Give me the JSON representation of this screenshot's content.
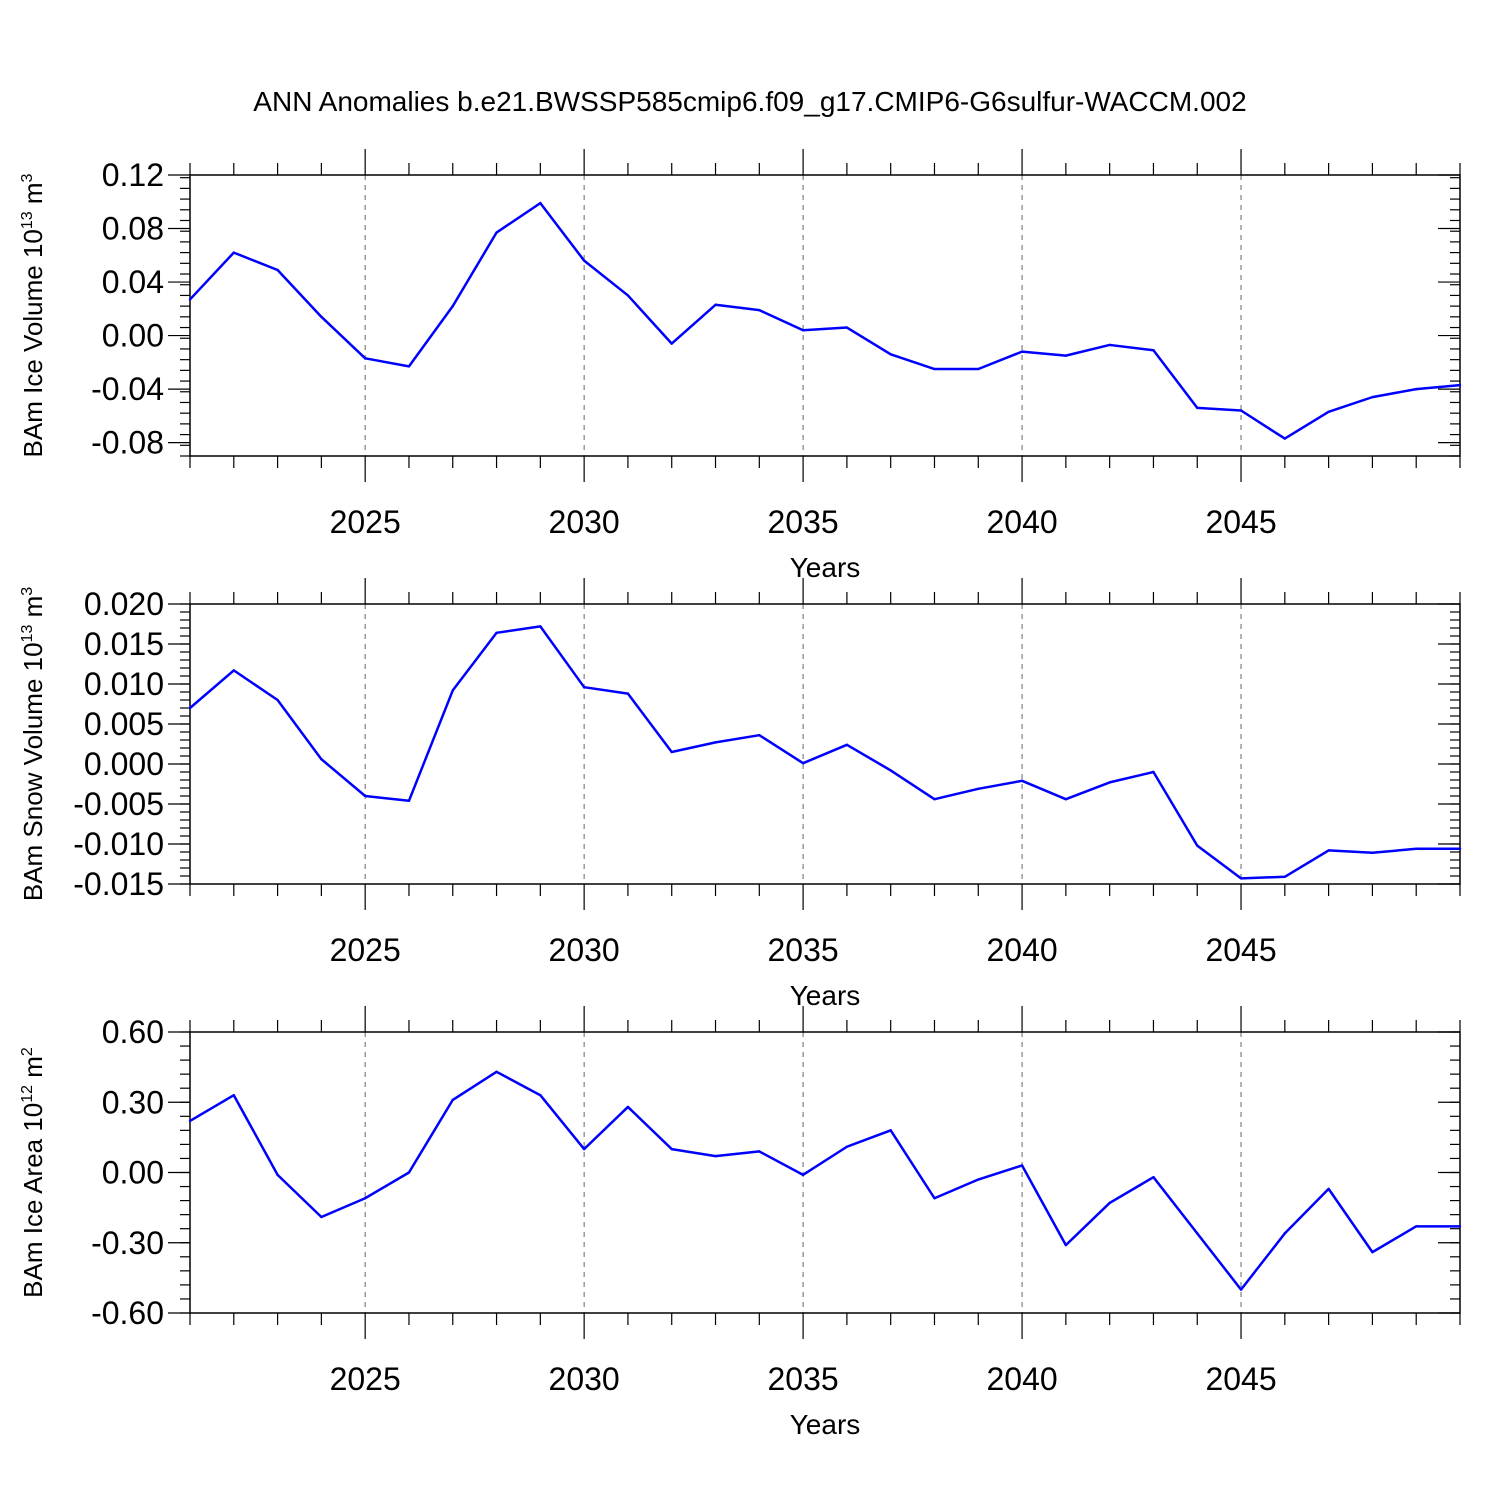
{
  "title": "ANN Anomalies b.e21.BWSSP585cmip6.f09_g17.CMIP6-G6sulfur-WACCM.002",
  "line_color": "#0000ff",
  "chart_data": [
    {
      "type": "line",
      "ylabel": "BAm Ice Volume 10",
      "ylabel_exp": "13",
      "ylabel_unit": " m",
      "ylabel_unit_exp": "3",
      "xlabel": "Years",
      "xlim": [
        2021,
        2050
      ],
      "ylim": [
        -0.09,
        0.12
      ],
      "yticks": [
        -0.08,
        -0.04,
        0.0,
        0.04,
        0.08,
        0.12
      ],
      "ytick_labels": [
        "-0.08",
        "-0.04",
        "0.00",
        "0.04",
        "0.08",
        "0.12"
      ],
      "yminor_step": 0.008,
      "xticks": [
        2025,
        2030,
        2035,
        2040,
        2045
      ],
      "xtick_labels": [
        "2025",
        "2030",
        "2035",
        "2040",
        "2045"
      ],
      "grid": "x-dashed",
      "series": [
        {
          "x": [
            2021,
            2022,
            2023,
            2024,
            2025,
            2026,
            2027,
            2028,
            2029,
            2030,
            2031,
            2032,
            2033,
            2034,
            2035,
            2036,
            2037,
            2038,
            2039,
            2040,
            2041,
            2042,
            2043,
            2044,
            2045,
            2046,
            2047,
            2048,
            2049,
            2050
          ],
          "values": [
            0.027,
            0.062,
            0.049,
            0.014,
            -0.017,
            -0.023,
            0.022,
            0.077,
            0.099,
            0.056,
            0.03,
            -0.006,
            0.023,
            0.019,
            0.004,
            0.006,
            -0.014,
            -0.025,
            -0.025,
            -0.012,
            -0.015,
            -0.007,
            -0.011,
            -0.054,
            -0.056,
            -0.077,
            -0.057,
            -0.046,
            -0.04,
            -0.037
          ]
        }
      ]
    },
    {
      "type": "line",
      "ylabel": "BAm Snow Volume 10",
      "ylabel_exp": "13",
      "ylabel_unit": " m",
      "ylabel_unit_exp": "3",
      "xlabel": "Years",
      "xlim": [
        2021,
        2050
      ],
      "ylim": [
        -0.015,
        0.02
      ],
      "yticks": [
        -0.015,
        -0.01,
        -0.005,
        0.0,
        0.005,
        0.01,
        0.015,
        0.02
      ],
      "ytick_labels": [
        "-0.015",
        "-0.010",
        "-0.005",
        "0.000",
        "0.005",
        "0.010",
        "0.015",
        "0.020"
      ],
      "yminor_step": 0.001,
      "xticks": [
        2025,
        2030,
        2035,
        2040,
        2045
      ],
      "xtick_labels": [
        "2025",
        "2030",
        "2035",
        "2040",
        "2045"
      ],
      "grid": "x-dashed",
      "series": [
        {
          "x": [
            2021,
            2022,
            2023,
            2024,
            2025,
            2026,
            2027,
            2028,
            2029,
            2030,
            2031,
            2032,
            2033,
            2034,
            2035,
            2036,
            2037,
            2038,
            2039,
            2040,
            2041,
            2042,
            2043,
            2044,
            2045,
            2046,
            2047,
            2048,
            2049,
            2050
          ],
          "values": [
            0.007,
            0.0117,
            0.008,
            0.0006,
            -0.004,
            -0.0046,
            0.0092,
            0.0164,
            0.0172,
            0.0096,
            0.0088,
            0.0015,
            0.0027,
            0.0036,
            0.0001,
            0.0024,
            -0.0008,
            -0.0044,
            -0.0031,
            -0.0021,
            -0.0044,
            -0.0023,
            -0.001,
            -0.0102,
            -0.0143,
            -0.0141,
            -0.0108,
            -0.0111,
            -0.0106,
            -0.0106
          ]
        }
      ]
    },
    {
      "type": "line",
      "ylabel": "BAm Ice Area 10",
      "ylabel_exp": "12",
      "ylabel_unit": " m",
      "ylabel_unit_exp": "2",
      "xlabel": "Years",
      "xlim": [
        2021,
        2050
      ],
      "ylim": [
        -0.6,
        0.6
      ],
      "yticks": [
        -0.6,
        -0.3,
        0.0,
        0.3,
        0.6
      ],
      "ytick_labels": [
        "-0.60",
        "-0.30",
        "0.00",
        "0.30",
        "0.60"
      ],
      "yminor_step": 0.06,
      "xticks": [
        2025,
        2030,
        2035,
        2040,
        2045
      ],
      "xtick_labels": [
        "2025",
        "2030",
        "2035",
        "2040",
        "2045"
      ],
      "grid": "x-dashed",
      "series": [
        {
          "x": [
            2021,
            2022,
            2023,
            2024,
            2025,
            2026,
            2027,
            2028,
            2029,
            2030,
            2031,
            2032,
            2033,
            2034,
            2035,
            2036,
            2037,
            2038,
            2039,
            2040,
            2041,
            2042,
            2043,
            2044,
            2045,
            2046,
            2047,
            2048,
            2049,
            2050
          ],
          "values": [
            0.22,
            0.33,
            -0.01,
            -0.19,
            -0.11,
            0.0,
            0.31,
            0.43,
            0.33,
            0.1,
            0.28,
            0.1,
            0.07,
            0.09,
            -0.01,
            0.11,
            0.18,
            -0.11,
            -0.03,
            0.03,
            -0.31,
            -0.13,
            -0.02,
            -0.26,
            -0.5,
            -0.26,
            -0.07,
            -0.34,
            -0.23,
            -0.23
          ]
        }
      ]
    }
  ]
}
